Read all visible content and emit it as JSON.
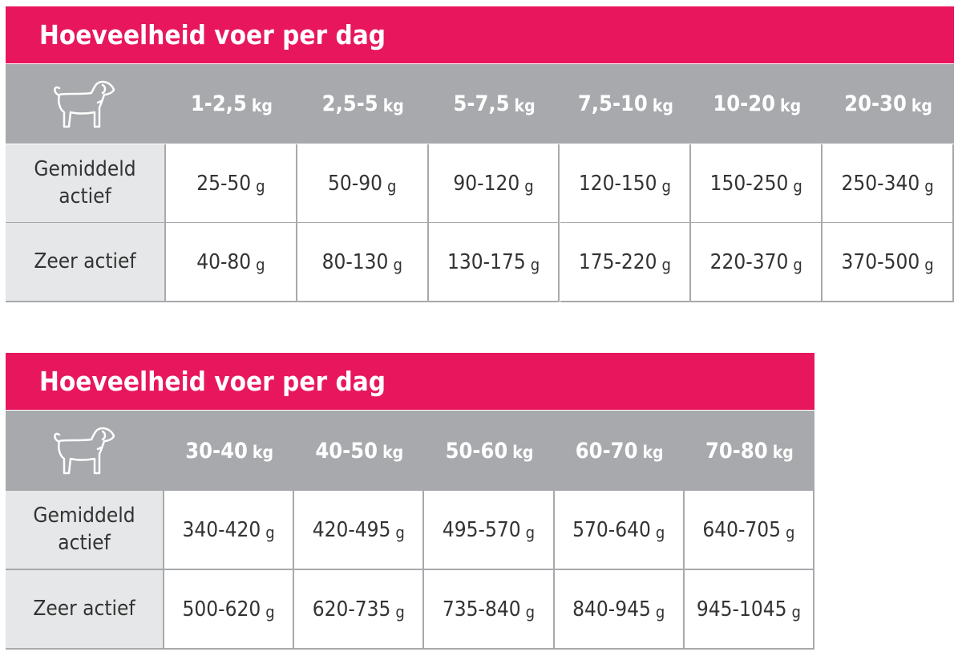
{
  "tables": [
    {
      "title": "Hoeveelheid voer per dag",
      "columns": [
        {
          "range": "1-2,5",
          "unit": "kg"
        },
        {
          "range": "2,5-5",
          "unit": "kg"
        },
        {
          "range": "5-7,5",
          "unit": "kg"
        },
        {
          "range": "7,5-10",
          "unit": "kg"
        },
        {
          "range": "10-20",
          "unit": "kg"
        },
        {
          "range": "20-30",
          "unit": "kg"
        }
      ],
      "rows": [
        {
          "label": "Gemiddeld actief",
          "cells": [
            {
              "value": "25-50",
              "unit": "g"
            },
            {
              "value": "50-90",
              "unit": "g"
            },
            {
              "value": "90-120",
              "unit": "g"
            },
            {
              "value": "120-150",
              "unit": "g"
            },
            {
              "value": "150-250",
              "unit": "g"
            },
            {
              "value": "250-340",
              "unit": "g"
            }
          ]
        },
        {
          "label": "Zeer actief",
          "cells": [
            {
              "value": "40-80",
              "unit": "g"
            },
            {
              "value": "80-130",
              "unit": "g"
            },
            {
              "value": "130-175",
              "unit": "g"
            },
            {
              "value": "175-220",
              "unit": "g"
            },
            {
              "value": "220-370",
              "unit": "g"
            },
            {
              "value": "370-500",
              "unit": "g"
            }
          ]
        }
      ]
    },
    {
      "title": "Hoeveelheid voer per dag",
      "columns": [
        {
          "range": "30-40",
          "unit": "kg"
        },
        {
          "range": "40-50",
          "unit": "kg"
        },
        {
          "range": "50-60",
          "unit": "kg"
        },
        {
          "range": "60-70",
          "unit": "kg"
        },
        {
          "range": "70-80",
          "unit": "kg"
        }
      ],
      "rows": [
        {
          "label": "Gemiddeld actief",
          "cells": [
            {
              "value": "340-420",
              "unit": "g"
            },
            {
              "value": "420-495",
              "unit": "g"
            },
            {
              "value": "495-570",
              "unit": "g"
            },
            {
              "value": "570-640",
              "unit": "g"
            },
            {
              "value": "640-705",
              "unit": "g"
            }
          ]
        },
        {
          "label": "Zeer actief",
          "cells": [
            {
              "value": "500-620",
              "unit": "g"
            },
            {
              "value": "620-735",
              "unit": "g"
            },
            {
              "value": "735-840",
              "unit": "g"
            },
            {
              "value": "840-945",
              "unit": "g"
            },
            {
              "value": "945-1045",
              "unit": "g"
            }
          ]
        }
      ]
    }
  ]
}
